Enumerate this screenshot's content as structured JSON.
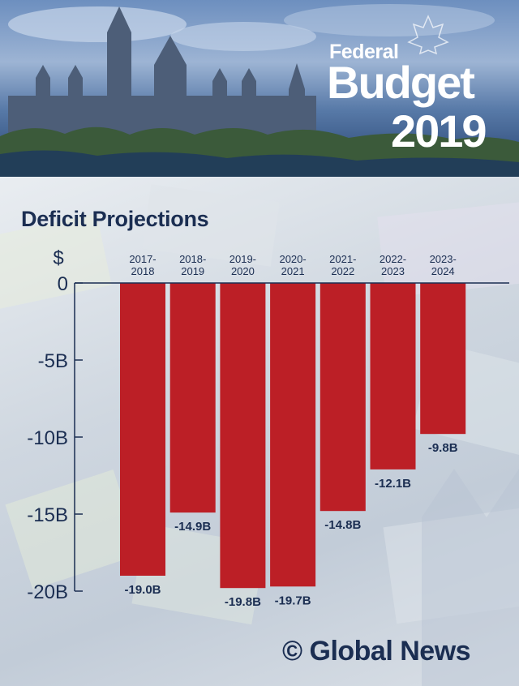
{
  "header": {
    "brand_line1": "Federal",
    "brand_line2": "Budget",
    "brand_line3": "2019"
  },
  "watermark": "© Global News",
  "colors": {
    "bar": "#bc1f26",
    "text_dark": "#1b2e52",
    "axis": "#1b2e52",
    "header_bottom": "#24406e"
  },
  "chart_data": {
    "type": "bar",
    "title": "Deficit Projections",
    "ylabel": "$",
    "categories": [
      [
        "2017-",
        "2018"
      ],
      [
        "2018-",
        "2019"
      ],
      [
        "2019-",
        "2020"
      ],
      [
        "2020-",
        "2021"
      ],
      [
        "2021-",
        "2022"
      ],
      [
        "2022-",
        "2023"
      ],
      [
        "2023-",
        "2024"
      ]
    ],
    "values": [
      -19.0,
      -14.9,
      -19.8,
      -19.7,
      -14.8,
      -12.1,
      -9.8
    ],
    "data_labels": [
      "-19.0B",
      "-14.9B",
      "-19.8B",
      "-19.7B",
      "-14.8B",
      "-12.1B",
      "-9.8B"
    ],
    "yticks": [
      0,
      -5,
      -10,
      -15,
      -20
    ],
    "ytick_labels": [
      "0",
      "-5B",
      "-10B",
      "-15B",
      "-20B"
    ],
    "ylim": [
      -20,
      0
    ],
    "category_axis_position": "top",
    "grid": false
  }
}
